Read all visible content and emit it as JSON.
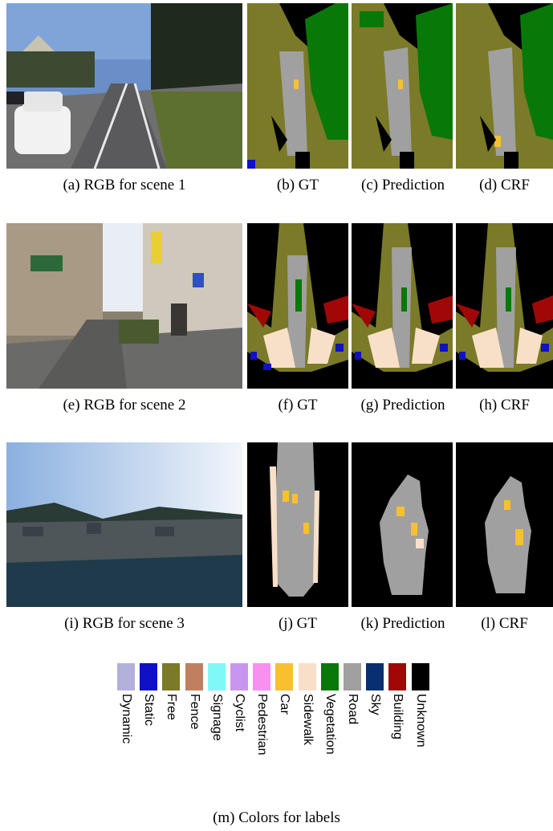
{
  "captions": {
    "a": "(a) RGB for scene 1",
    "b": "(b) GT",
    "c": "(c) Prediction",
    "d": "(d) CRF",
    "e": "(e) RGB for scene 2",
    "f": "(f) GT",
    "g": "(g) Prediction",
    "h": "(h) CRF",
    "i": "(i) RGB for scene 3",
    "j": "(j) GT",
    "k": "(k) Prediction",
    "l": "(l) CRF",
    "m": "(m) Colors for labels"
  },
  "legend": [
    {
      "label": "Dynamic",
      "color": "#b3b0dc"
    },
    {
      "label": "Static",
      "color": "#1010c8"
    },
    {
      "label": "Free",
      "color": "#7a7a28"
    },
    {
      "label": "Fence",
      "color": "#c08060"
    },
    {
      "label": "Signage",
      "color": "#80f8f8"
    },
    {
      "label": "Cyclist",
      "color": "#c896f0"
    },
    {
      "label": "Pedestrian",
      "color": "#f890f0"
    },
    {
      "label": "Car",
      "color": "#f8c030"
    },
    {
      "label": "Sidewalk",
      "color": "#f8e0c8"
    },
    {
      "label": "Vegetation",
      "color": "#087808"
    },
    {
      "label": "Road",
      "color": "#a0a0a0"
    },
    {
      "label": "Sky",
      "color": "#083070"
    },
    {
      "label": "Building",
      "color": "#a00808"
    },
    {
      "label": "Unknown",
      "color": "#000000"
    }
  ]
}
